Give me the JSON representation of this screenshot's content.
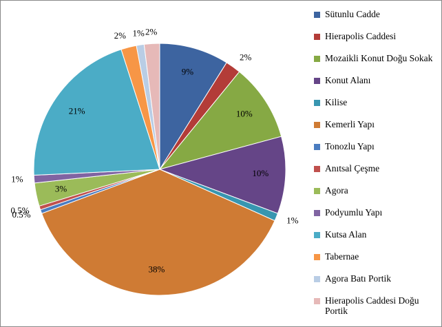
{
  "chart_data": {
    "type": "pie",
    "categories": [
      "Sütunlu Cadde",
      "Hierapolis Caddesi",
      "Mozaikli Konut Doğu Sokak",
      "Konut Alanı",
      "Kilise",
      "Kemerli Yapı",
      "Tonozlu Yapı",
      "Anıtsal Çeşme",
      "Agora",
      "Podyumlu Yapı",
      "Kutsa Alan",
      "Tabernae",
      "Agora Batı Portik",
      "Hierapolis Caddesi Doğu Portik"
    ],
    "values": [
      9,
      2,
      10,
      10,
      1,
      38,
      0.5,
      0.5,
      3,
      1,
      21,
      2,
      1,
      2
    ],
    "value_labels": [
      "9%",
      "2%",
      "10%",
      "10%",
      "1%",
      "38%",
      "0.5%",
      "0.5%",
      "3%",
      "1%",
      "21%",
      "2%",
      "1%",
      "2%"
    ],
    "colors": [
      "#3d64a0",
      "#b33c38",
      "#86a944",
      "#654587",
      "#3896b0",
      "#cf7b34",
      "#4a7cc0",
      "#c0504d",
      "#9bbb59",
      "#8064a2",
      "#4bacc6",
      "#f79646",
      "#b9cde5",
      "#e6b9b8"
    ],
    "legend": "right"
  }
}
